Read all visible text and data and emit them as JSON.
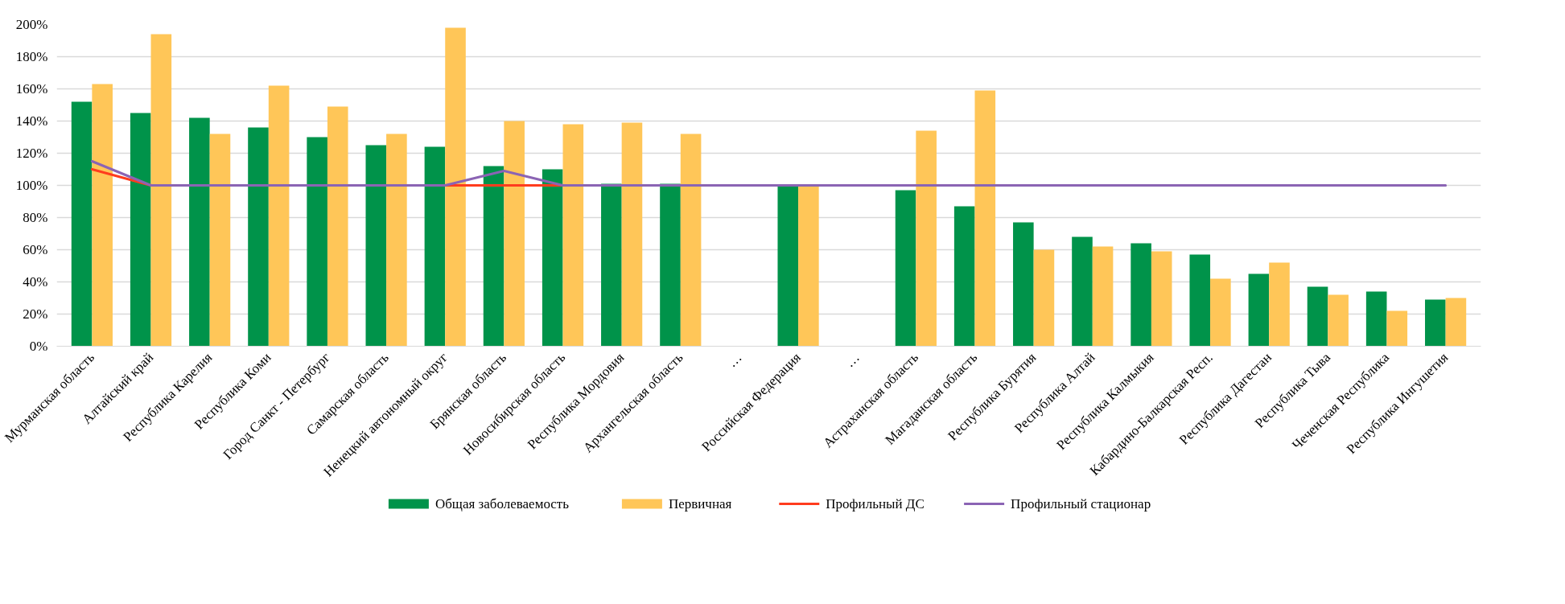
{
  "chart_data": {
    "type": "bar",
    "categories": [
      "Мурманская область",
      "Алтайский край",
      "Республика Карелия",
      "Республика Коми",
      "Город Санкт - Петербург",
      "Самарская область",
      "Ненецкий автономный округ",
      "Брянская область",
      "Новосибирская область",
      "Республика Мордовия",
      "Архангельская область",
      "…",
      "Российская Федерация",
      "…",
      "Астраханская область",
      "Магаданская область",
      "Республика Бурятия",
      "Республика Алтай",
      "Республика Калмыкия",
      "Кабардино-Балкарская Респ.",
      "Республика Дагестан",
      "Республика Тыва",
      "Чеченская Республика",
      "Республика Ингушетия"
    ],
    "series": [
      {
        "name": "Общая заболеваемость",
        "color": "#00934a",
        "values": [
          152,
          145,
          142,
          136,
          130,
          125,
          124,
          112,
          110,
          101,
          101,
          null,
          100,
          null,
          97,
          87,
          77,
          68,
          64,
          57,
          45,
          37,
          34,
          29
        ]
      },
      {
        "name": "Первичная",
        "color": "#ffc658",
        "values": [
          163,
          194,
          132,
          162,
          149,
          132,
          198,
          140,
          138,
          139,
          132,
          null,
          100,
          null,
          134,
          159,
          60,
          62,
          59,
          42,
          52,
          32,
          22,
          30
        ]
      },
      {
        "name": "Профильный ДС",
        "color": "#ff3c1e",
        "type": "line",
        "values": [
          110,
          100,
          null,
          null,
          null,
          null,
          100,
          100,
          100,
          null,
          null,
          null,
          null,
          null,
          null,
          null,
          null,
          null,
          null,
          null,
          null,
          null,
          null,
          null
        ]
      },
      {
        "name": "Профильный стационар",
        "color": "#8b64b4",
        "type": "line",
        "values": [
          115,
          100,
          100,
          100,
          100,
          100,
          100,
          109,
          100,
          100,
          100,
          100,
          100,
          100,
          100,
          100,
          100,
          100,
          100,
          100,
          100,
          100,
          100,
          100
        ]
      }
    ],
    "ylim": [
      0,
      200
    ],
    "yticks": [
      {
        "value": 0,
        "label": "0%"
      },
      {
        "value": 20,
        "label": "20%"
      },
      {
        "value": 40,
        "label": "40%"
      },
      {
        "value": 60,
        "label": "60%"
      },
      {
        "value": 80,
        "label": "80%"
      },
      {
        "value": 100,
        "label": "100%"
      },
      {
        "value": 120,
        "label": "120%"
      },
      {
        "value": 140,
        "label": "140%"
      },
      {
        "value": 160,
        "label": "160%"
      },
      {
        "value": 180,
        "label": "180%"
      },
      {
        "value": 200,
        "label": "200%"
      }
    ],
    "grid": "y",
    "legend": "bottom"
  }
}
